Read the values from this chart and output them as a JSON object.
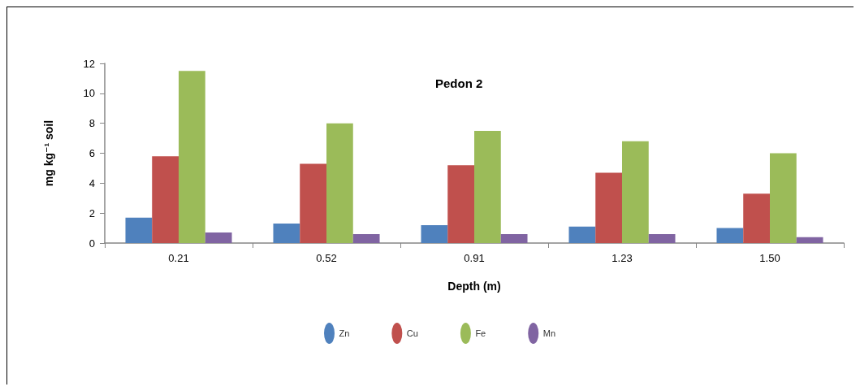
{
  "chart_data": {
    "type": "bar",
    "title": "Pedon 2",
    "xlabel": "Depth (m)",
    "ylabel": "mg kg⁻¹ soil",
    "categories": [
      "0.21",
      "0.52",
      "0.91",
      "1.23",
      "1.50"
    ],
    "series": [
      {
        "name": "Zn",
        "color": "#4f81bd",
        "values": [
          1.7,
          1.3,
          1.2,
          1.1,
          1.0
        ]
      },
      {
        "name": "Cu",
        "color": "#c0504d",
        "values": [
          5.8,
          5.3,
          5.2,
          4.7,
          3.3
        ]
      },
      {
        "name": "Fe",
        "color": "#9bbb59",
        "values": [
          11.5,
          8.0,
          7.5,
          6.8,
          6.0
        ]
      },
      {
        "name": "Mn",
        "color": "#8064a2",
        "values": [
          0.7,
          0.6,
          0.6,
          0.6,
          0.4
        ]
      }
    ],
    "ylim": [
      0,
      12
    ],
    "yticks": [
      0,
      2,
      4,
      6,
      8,
      10,
      12
    ],
    "grid": false,
    "legend": "bottom"
  }
}
